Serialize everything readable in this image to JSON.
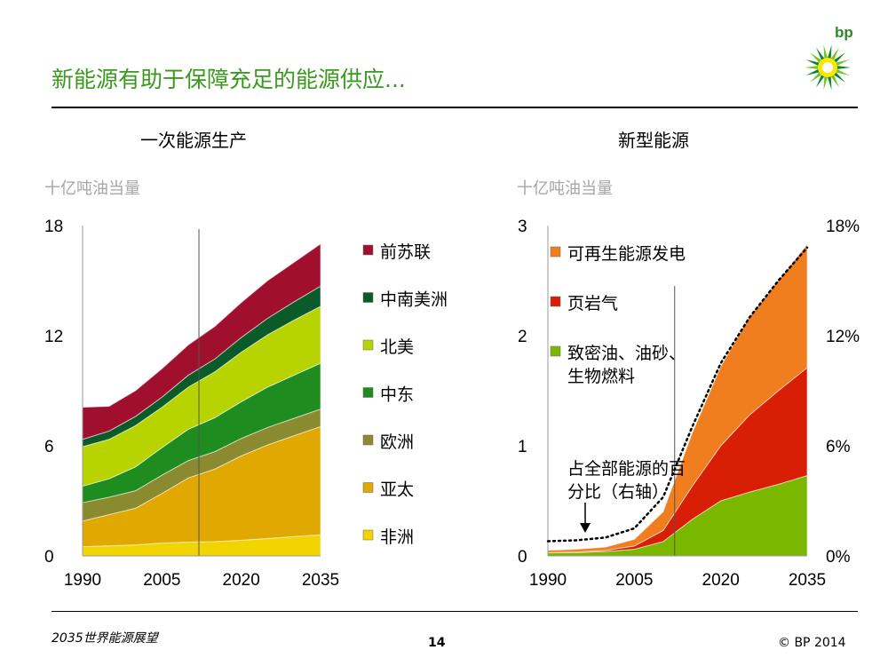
{
  "slide": {
    "title": "新能源有助于保障充足的能源供应...",
    "logo_text": "bp",
    "footer_left": "2035世界能源展望",
    "page_number": "14",
    "copyright": "© BP 2014"
  },
  "colors": {
    "title_green": "#3a9a1e",
    "unit_grey": "#a6a6a6"
  },
  "chart_data": [
    {
      "type": "area",
      "stacked": true,
      "title": "一次能源生产",
      "ylabel": "十亿吨油当量",
      "x": [
        1990,
        1995,
        2000,
        2005,
        2010,
        2015,
        2020,
        2025,
        2030,
        2035
      ],
      "xticks": [
        "1990",
        "2005",
        "2020",
        "2035"
      ],
      "yticks": [
        "0",
        "6",
        "12",
        "18"
      ],
      "ylim": [
        0,
        18
      ],
      "xlim": [
        1990,
        2035
      ],
      "reference_line_x": 2012,
      "series": [
        {
          "name": "非洲",
          "color": "#f2d400",
          "values": [
            0.5,
            0.55,
            0.6,
            0.7,
            0.75,
            0.78,
            0.85,
            0.95,
            1.05,
            1.15
          ]
        },
        {
          "name": "亚太",
          "color": "#e0a800",
          "values": [
            1.4,
            1.7,
            2.0,
            2.7,
            3.5,
            3.95,
            4.6,
            5.1,
            5.5,
            5.9
          ]
        },
        {
          "name": "欧洲",
          "color": "#8a8a30",
          "values": [
            1.0,
            0.95,
            0.95,
            1.0,
            0.95,
            0.95,
            0.95,
            0.95,
            0.95,
            0.95
          ]
        },
        {
          "name": "中东",
          "color": "#1e8c1e",
          "values": [
            0.9,
            1.0,
            1.3,
            1.5,
            1.7,
            1.85,
            2.0,
            2.2,
            2.35,
            2.5
          ]
        },
        {
          "name": "北美",
          "color": "#b8d400",
          "values": [
            2.15,
            2.15,
            2.25,
            2.2,
            2.3,
            2.5,
            2.7,
            2.85,
            3.0,
            3.1
          ]
        },
        {
          "name": "中南美洲",
          "color": "#0b5a2a",
          "values": [
            0.4,
            0.45,
            0.5,
            0.55,
            0.65,
            0.7,
            0.8,
            0.9,
            1.0,
            1.1
          ]
        },
        {
          "name": "前苏联",
          "color": "#a0102e",
          "values": [
            1.75,
            1.35,
            1.4,
            1.55,
            1.65,
            1.77,
            1.9,
            2.05,
            2.15,
            2.3
          ]
        }
      ],
      "legend_order": [
        "前苏联",
        "中南美洲",
        "北美",
        "中东",
        "欧洲",
        "亚太",
        "非洲"
      ]
    },
    {
      "type": "area",
      "stacked": true,
      "title": "新型能源",
      "ylabel": "十亿吨油当量",
      "x": [
        1990,
        1995,
        2000,
        2005,
        2010,
        2015,
        2020,
        2025,
        2030,
        2035
      ],
      "xticks": [
        "1990",
        "2005",
        "2020",
        "2035"
      ],
      "yticks": [
        "0",
        "1",
        "2",
        "3"
      ],
      "ylim": [
        0,
        3
      ],
      "xlim": [
        1990,
        2035
      ],
      "right_yticks": [
        "0%",
        "6%",
        "12%",
        "18%"
      ],
      "right_ylim": [
        0,
        18
      ],
      "reference_line_x": 2012,
      "series": [
        {
          "name": "致密油、油砂、生物燃料",
          "color": "#7ab800",
          "values": [
            0.03,
            0.03,
            0.04,
            0.06,
            0.13,
            0.33,
            0.5,
            0.58,
            0.65,
            0.73
          ]
        },
        {
          "name": "页岩气",
          "color": "#d81e05",
          "values": [
            0.0,
            0.005,
            0.01,
            0.03,
            0.1,
            0.3,
            0.5,
            0.7,
            0.85,
            0.98
          ]
        },
        {
          "name": "可再生能源发电",
          "color": "#f07d1e",
          "values": [
            0.02,
            0.025,
            0.03,
            0.06,
            0.17,
            0.48,
            0.72,
            0.89,
            1.0,
            1.12
          ]
        }
      ],
      "legend_order": [
        "可再生能源发电",
        "页岩气",
        "致密油、油砂、生物燃料"
      ],
      "share_of_total": {
        "name": "占全部能源的百分比（右轴）",
        "axis": "right",
        "values": [
          0.8,
          0.85,
          1.0,
          1.5,
          3.2,
          7.0,
          10.5,
          13.0,
          15.0,
          16.8
        ]
      },
      "annotation": "占全部能源的百分比（右轴）"
    }
  ]
}
